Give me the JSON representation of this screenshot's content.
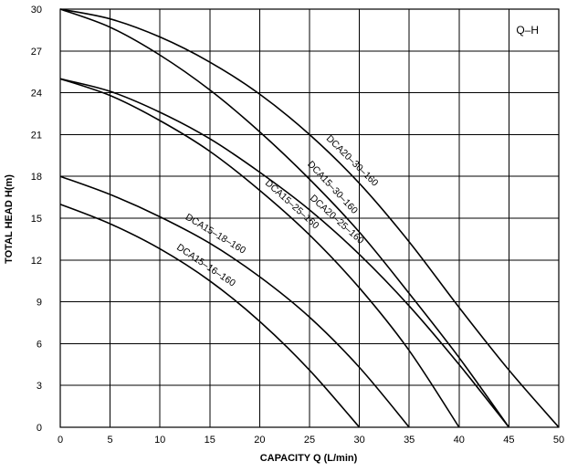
{
  "chart_data": {
    "type": "line",
    "title": "Q–H",
    "xlabel": "CAPACITY  Q (L/min)",
    "ylabel": "TOTAL HEAD H(m)",
    "xlim": [
      0,
      50
    ],
    "ylim": [
      0,
      30
    ],
    "xticks": [
      0,
      5,
      10,
      15,
      20,
      25,
      30,
      35,
      40,
      45,
      50
    ],
    "yticks": [
      0,
      3,
      6,
      9,
      12,
      15,
      18,
      21,
      24,
      27,
      30
    ],
    "grid": true,
    "series": [
      {
        "name": "DCA20–30–160",
        "x": [
          0,
          5,
          10,
          15,
          20,
          25,
          30,
          35,
          40,
          45,
          50
        ],
        "y": [
          30,
          29.3,
          28,
          26.2,
          23.9,
          21,
          17.5,
          13.3,
          8.6,
          4.1,
          0
        ]
      },
      {
        "name": "DCA15–30–160",
        "x": [
          0,
          5,
          10,
          15,
          20,
          25,
          30,
          35,
          40,
          45
        ],
        "y": [
          30,
          28.7,
          26.7,
          24.2,
          21.2,
          17.8,
          14,
          9.6,
          5,
          0
        ]
      },
      {
        "name": "DCA20–25–160",
        "x": [
          0,
          5,
          10,
          15,
          20,
          25,
          30,
          35,
          40,
          45
        ],
        "y": [
          25,
          24.1,
          22.6,
          20.7,
          18.3,
          15.6,
          12.4,
          8.7,
          4.5,
          0
        ]
      },
      {
        "name": "DCA15–25–160",
        "x": [
          0,
          5,
          10,
          15,
          20,
          25,
          30,
          35,
          40
        ],
        "y": [
          25,
          23.8,
          22,
          19.8,
          17,
          13.8,
          10,
          5.5,
          0
        ]
      },
      {
        "name": "DCA15–18–160",
        "x": [
          0,
          5,
          10,
          15,
          20,
          25,
          30,
          35
        ],
        "y": [
          18,
          16.7,
          15.1,
          13.2,
          10.8,
          7.9,
          4.3,
          0
        ]
      },
      {
        "name": "DCA15–16–160",
        "x": [
          0,
          5,
          10,
          15,
          20,
          25,
          30
        ],
        "y": [
          16,
          14.6,
          12.8,
          10.5,
          7.6,
          4.1,
          0
        ]
      }
    ]
  }
}
